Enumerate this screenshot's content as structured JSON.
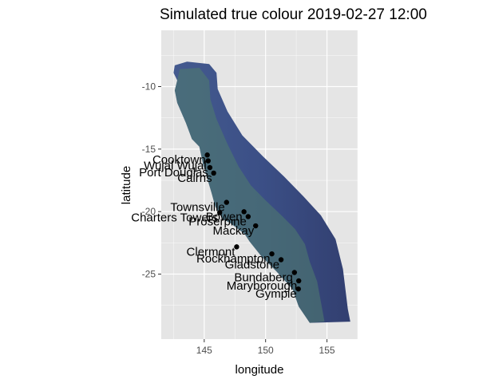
{
  "title": "Simulated true colour 2019-02-27 12:00",
  "xlabel": "longitude",
  "ylabel": "latitude",
  "colors": {
    "panel_bg": "#e5e5e5",
    "grid": "#ffffff",
    "sea": "#3c5088",
    "sea_dark": "#34447a",
    "reef": "#4e7a6e",
    "point": "#000000"
  },
  "chart_data": {
    "type": "map",
    "xlim": [
      141.5,
      157.5
    ],
    "ylim": [
      -30.2,
      -5.5
    ],
    "x_ticks": [
      145,
      150,
      155
    ],
    "y_ticks": [
      -10,
      -15,
      -20,
      -25
    ],
    "x_tick_labels": [
      "145",
      "150",
      "155"
    ],
    "y_tick_labels": [
      "-10",
      "-15",
      "-20",
      "-25"
    ],
    "grid": true,
    "towns": [
      {
        "name": "Cooktown",
        "lon": 145.25,
        "lat": -15.47
      },
      {
        "name": "Wujal Wujal",
        "lon": 145.32,
        "lat": -15.94
      },
      {
        "name": "Port Douglas",
        "lon": 145.46,
        "lat": -16.48
      },
      {
        "name": "Cairns",
        "lon": 145.77,
        "lat": -16.92
      },
      {
        "name": "Townsville",
        "lon": 146.82,
        "lat": -19.26
      },
      {
        "name": "Charters Towers",
        "lon": 146.26,
        "lat": -20.08
      },
      {
        "name": "Bowen",
        "lon": 148.24,
        "lat": -20.01
      },
      {
        "name": "Proserpine",
        "lon": 148.58,
        "lat": -20.4
      },
      {
        "name": "Mackay",
        "lon": 149.19,
        "lat": -21.14
      },
      {
        "name": "Clermont",
        "lon": 147.64,
        "lat": -22.82
      },
      {
        "name": "Rockhampton",
        "lon": 150.51,
        "lat": -23.38
      },
      {
        "name": "Gladstone",
        "lon": 151.26,
        "lat": -23.85
      },
      {
        "name": "Bundaberg",
        "lon": 152.35,
        "lat": -24.87
      },
      {
        "name": "Maryborough",
        "lon": 152.7,
        "lat": -25.54
      },
      {
        "name": "Gympie",
        "lon": 152.67,
        "lat": -26.19
      }
    ],
    "domain_outline": [
      [
        142.6,
        -8.3
      ],
      [
        143.6,
        -8.0
      ],
      [
        145.4,
        -8.2
      ],
      [
        146.0,
        -8.9
      ],
      [
        146.1,
        -10.2
      ],
      [
        146.9,
        -12.0
      ],
      [
        148.1,
        -13.9
      ],
      [
        149.8,
        -15.6
      ],
      [
        151.5,
        -17.2
      ],
      [
        153.1,
        -18.8
      ],
      [
        154.5,
        -20.3
      ],
      [
        155.7,
        -22.2
      ],
      [
        156.3,
        -24.6
      ],
      [
        156.7,
        -27.8
      ],
      [
        156.9,
        -28.8
      ],
      [
        153.6,
        -28.9
      ],
      [
        152.7,
        -27.6
      ],
      [
        152.2,
        -26.2
      ],
      [
        150.9,
        -24.8
      ],
      [
        149.6,
        -23.5
      ],
      [
        148.7,
        -22.4
      ],
      [
        148.3,
        -21.8
      ],
      [
        147.1,
        -20.9
      ],
      [
        146.5,
        -20.6
      ],
      [
        145.9,
        -19.6
      ],
      [
        145.6,
        -18.5
      ],
      [
        144.9,
        -16.2
      ],
      [
        144.6,
        -14.8
      ],
      [
        144.0,
        -14.2
      ],
      [
        143.5,
        -12.9
      ],
      [
        142.8,
        -11.3
      ],
      [
        142.6,
        -10.3
      ],
      [
        142.8,
        -9.5
      ],
      [
        142.5,
        -8.9
      ]
    ],
    "reef_band": [
      [
        143.0,
        -8.6
      ],
      [
        144.6,
        -8.5
      ],
      [
        145.4,
        -9.5
      ],
      [
        145.5,
        -11.0
      ],
      [
        146.0,
        -12.6
      ],
      [
        146.9,
        -14.6
      ],
      [
        147.8,
        -16.4
      ],
      [
        148.8,
        -17.9
      ],
      [
        150.0,
        -19.1
      ],
      [
        151.4,
        -20.4
      ],
      [
        152.4,
        -21.4
      ],
      [
        153.2,
        -22.6
      ],
      [
        153.6,
        -24.0
      ],
      [
        154.2,
        -25.6
      ],
      [
        154.5,
        -27.2
      ],
      [
        154.8,
        -28.8
      ],
      [
        153.6,
        -28.9
      ],
      [
        152.7,
        -27.6
      ],
      [
        152.2,
        -26.2
      ],
      [
        150.9,
        -24.8
      ],
      [
        149.6,
        -23.5
      ],
      [
        148.7,
        -22.4
      ],
      [
        148.3,
        -21.8
      ],
      [
        147.1,
        -20.9
      ],
      [
        146.5,
        -20.6
      ],
      [
        145.9,
        -19.6
      ],
      [
        145.6,
        -18.5
      ],
      [
        144.9,
        -16.2
      ],
      [
        144.6,
        -14.8
      ],
      [
        144.0,
        -14.2
      ],
      [
        143.5,
        -12.9
      ],
      [
        142.8,
        -11.3
      ],
      [
        142.6,
        -10.3
      ],
      [
        142.8,
        -9.5
      ]
    ]
  }
}
